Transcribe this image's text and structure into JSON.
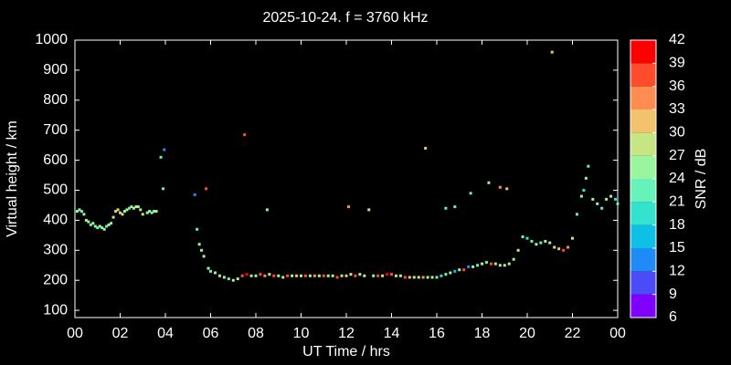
{
  "chart_data": {
    "type": "scatter",
    "title": "2025-10-24. f = 3760 kHz",
    "x_label": "UT Time / hrs",
    "y_label": "Virtual height / km",
    "xlim": [
      0,
      24
    ],
    "xticks": [
      {
        "value": 0,
        "label": "00"
      },
      {
        "value": 2,
        "label": "02"
      },
      {
        "value": 4,
        "label": "04"
      },
      {
        "value": 6,
        "label": "06"
      },
      {
        "value": 8,
        "label": "08"
      },
      10,
      12,
      14,
      16,
      18,
      20,
      22,
      {
        "value": 24,
        "label": "00"
      }
    ],
    "ylim": [
      76,
      1000
    ],
    "yticks": [
      100,
      200,
      300,
      400,
      500,
      600,
      700,
      800,
      900,
      1000
    ],
    "colorbar": {
      "label": "SNR / dB",
      "lim": [
        6,
        42
      ],
      "ticks": [
        6,
        9,
        12,
        15,
        18,
        21,
        24,
        27,
        30,
        33,
        36,
        39,
        42
      ],
      "colors": [
        "#8000ff",
        "#4b4bfa",
        "#1e8bf7",
        "#0fc0e6",
        "#33e3d0",
        "#66f2b8",
        "#99f59e",
        "#c8e584",
        "#f2c26c",
        "#ff8c50",
        "#ff4c2c",
        "#ff0000"
      ]
    },
    "series": [
      {
        "x": [
          0.1,
          0.2,
          0.3,
          0.4,
          0.5,
          0.6,
          0.7,
          0.8,
          0.9,
          1.0,
          1.1,
          1.2,
          1.3,
          1.4,
          1.5,
          1.6,
          1.7,
          1.8,
          1.9,
          2.0,
          2.1,
          2.2,
          2.3,
          2.4,
          2.5,
          2.6,
          2.7,
          2.8,
          2.9,
          3.0,
          3.2,
          3.3,
          3.4,
          3.5,
          3.6,
          3.8,
          3.9,
          3.95,
          5.3,
          5.4,
          5.5,
          5.6,
          5.7,
          5.8,
          5.9,
          6.0,
          6.2,
          6.4,
          6.6,
          6.8,
          7.0,
          7.2,
          7.4,
          7.5,
          7.6,
          7.8,
          8.0,
          8.2,
          8.4,
          8.5,
          8.6,
          8.8,
          9.0,
          9.2,
          9.4,
          9.6,
          9.8,
          10.0,
          10.2,
          10.4,
          10.6,
          10.8,
          11.0,
          11.2,
          11.4,
          11.6,
          11.8,
          12.0,
          12.1,
          12.2,
          12.4,
          12.6,
          12.8,
          13.0,
          13.2,
          13.4,
          13.6,
          13.8,
          14.0,
          14.2,
          14.4,
          14.6,
          14.8,
          15.0,
          15.2,
          15.4,
          15.5,
          15.6,
          15.8,
          16.0,
          16.2,
          16.4,
          16.6,
          16.8,
          17.0,
          17.2,
          17.4,
          17.5,
          17.6,
          17.8,
          18.0,
          18.2,
          18.3,
          18.4,
          18.6,
          18.8,
          19.0,
          19.2,
          19.4,
          19.6,
          19.8,
          20.0,
          20.2,
          20.4,
          20.6,
          20.8,
          21.0,
          21.1,
          21.2,
          21.4,
          21.6,
          21.8,
          22.0,
          22.2,
          22.4,
          22.5,
          22.6,
          22.7,
          22.9,
          23.1,
          23.3,
          23.5,
          23.7,
          23.9,
          24.0,
          16.4,
          16.8,
          18.8,
          19.1
        ],
        "y": [
          430,
          435,
          430,
          420,
          400,
          395,
          385,
          390,
          380,
          375,
          380,
          375,
          370,
          380,
          385,
          390,
          410,
          430,
          435,
          425,
          420,
          430,
          435,
          440,
          445,
          440,
          445,
          445,
          435,
          420,
          425,
          430,
          425,
          430,
          430,
          610,
          505,
          635,
          485,
          370,
          320,
          300,
          280,
          505,
          240,
          230,
          225,
          215,
          210,
          205,
          200,
          205,
          215,
          685,
          220,
          215,
          215,
          220,
          215,
          435,
          220,
          215,
          215,
          210,
          215,
          215,
          215,
          215,
          215,
          215,
          215,
          215,
          215,
          215,
          215,
          210,
          215,
          215,
          445,
          220,
          215,
          220,
          215,
          435,
          215,
          215,
          215,
          220,
          220,
          215,
          215,
          210,
          210,
          210,
          210,
          210,
          640,
          210,
          210,
          210,
          215,
          220,
          225,
          230,
          235,
          235,
          245,
          490,
          245,
          250,
          255,
          260,
          525,
          255,
          255,
          250,
          250,
          255,
          270,
          300,
          345,
          340,
          330,
          320,
          325,
          330,
          325,
          960,
          310,
          305,
          300,
          310,
          340,
          420,
          480,
          500,
          540,
          580,
          470,
          455,
          440,
          470,
          480,
          470,
          455,
          440,
          445,
          510,
          505
        ],
        "snr": [
          24,
          24,
          21,
          24,
          27,
          24,
          21,
          24,
          24,
          21,
          24,
          24,
          24,
          21,
          24,
          24,
          27,
          30,
          27,
          30,
          27,
          24,
          24,
          21,
          24,
          27,
          24,
          27,
          24,
          27,
          24,
          24,
          21,
          24,
          24,
          21,
          21,
          12,
          12,
          21,
          24,
          24,
          27,
          36,
          24,
          21,
          24,
          27,
          24,
          21,
          27,
          24,
          36,
          36,
          39,
          27,
          24,
          36,
          33,
          24,
          27,
          36,
          24,
          27,
          36,
          24,
          30,
          27,
          36,
          24,
          33,
          27,
          36,
          24,
          27,
          36,
          24,
          30,
          33,
          27,
          36,
          24,
          27,
          27,
          24,
          36,
          27,
          39,
          36,
          27,
          24,
          36,
          30,
          24,
          27,
          33,
          30,
          24,
          27,
          21,
          18,
          21,
          24,
          15,
          24,
          36,
          12,
          21,
          24,
          21,
          24,
          21,
          24,
          36,
          27,
          24,
          24,
          27,
          24,
          27,
          21,
          18,
          21,
          24,
          21,
          24,
          27,
          30,
          27,
          30,
          36,
          33,
          27,
          21,
          24,
          18,
          24,
          21,
          24,
          24,
          21,
          24,
          24,
          18,
          21,
          21,
          21,
          33,
          30
        ]
      }
    ]
  }
}
